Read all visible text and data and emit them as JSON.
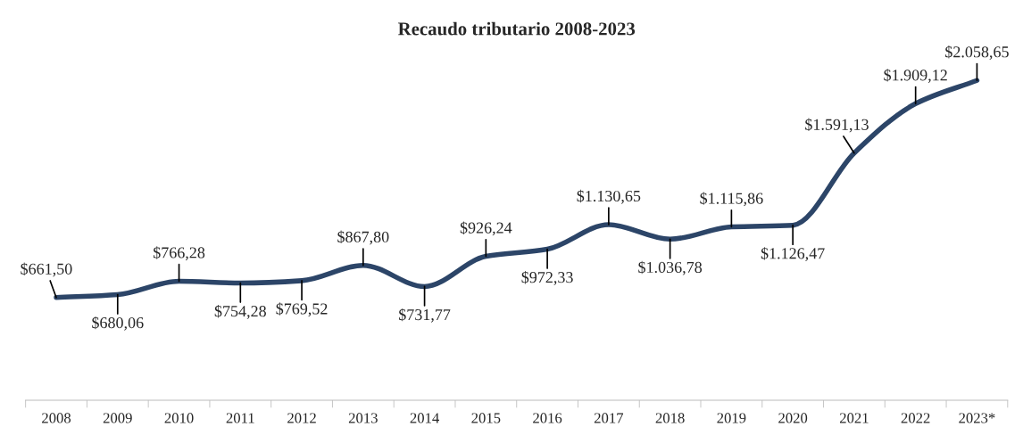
{
  "chart_data": {
    "type": "line",
    "title": "Recaudo tributario 2008-2023",
    "categories": [
      "2008",
      "2009",
      "2010",
      "2011",
      "2012",
      "2013",
      "2014",
      "2015",
      "2016",
      "2017",
      "2018",
      "2019",
      "2020",
      "2021",
      "2022",
      "2023*"
    ],
    "series": [
      {
        "color": "#2c4568",
        "values": [
          661.5,
          680.06,
          766.28,
          754.28,
          769.52,
          867.8,
          731.77,
          926.24,
          972.33,
          1130.65,
          1036.78,
          1115.86,
          1126.47,
          1591.13,
          1909.12,
          2058.65
        ],
        "value_labels": [
          "$661,50",
          "$680,06",
          "$766,28",
          "$754,28",
          "$769,52",
          "$867,80",
          "$731,77",
          "$926,24",
          "$972,33",
          "$1.130,65",
          "$1.036,78",
          "$1.115,86",
          "$1.126,47",
          "$1.591,13",
          "$1.909,12",
          "$2.058,65"
        ]
      }
    ],
    "grid": false,
    "legend": false,
    "marker": "none",
    "line_style": "solid",
    "tick_labels": "x"
  }
}
